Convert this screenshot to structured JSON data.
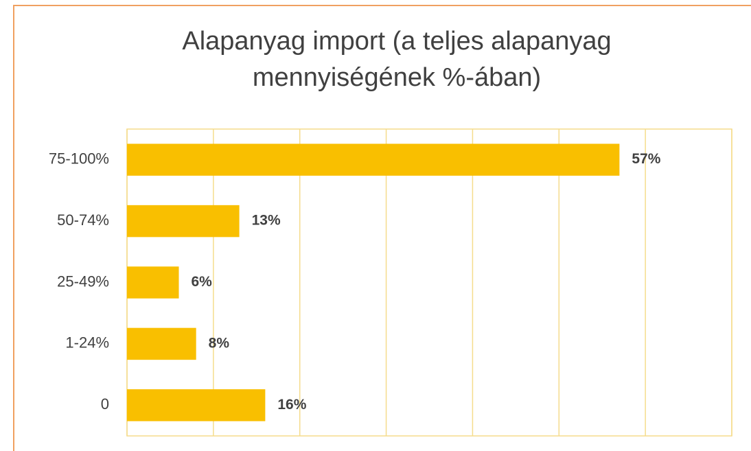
{
  "chart_data": {
    "type": "hbar",
    "title": [
      "Alapanyag import (a teljes alapanyag",
      "mennyiségének %-ában)"
    ],
    "categories": [
      "75-100%",
      "50-74%",
      "25-49%",
      "1-24%",
      "0"
    ],
    "values": [
      57,
      13,
      6,
      8,
      16
    ],
    "value_labels": [
      "57%",
      "13%",
      "6%",
      "8%",
      "16%"
    ],
    "color": "#f9bf00",
    "xlim": [
      0,
      70
    ],
    "xticks": [
      0,
      10,
      20,
      30,
      40,
      50,
      60,
      70
    ],
    "grid": true
  }
}
